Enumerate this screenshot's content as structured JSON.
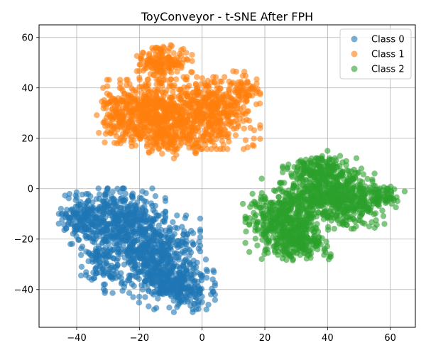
{
  "chart_data": {
    "type": "scatter",
    "title": "ToyConveyor - t-SNE After FPH",
    "xlabel": "",
    "ylabel": "",
    "xlim": [
      -52,
      68
    ],
    "ylim": [
      -55,
      65
    ],
    "xticks": [
      -40,
      -20,
      0,
      20,
      40,
      60
    ],
    "yticks": [
      -40,
      -20,
      0,
      20,
      40,
      60
    ],
    "xtick_labels": [
      "−40",
      "−20",
      "0",
      "20",
      "40",
      "60"
    ],
    "ytick_labels": [
      "−40",
      "−20",
      "0",
      "20",
      "40",
      "60"
    ],
    "grid": true,
    "legend_position": "top-right",
    "series": [
      {
        "name": "Class 0",
        "color": "#1f77b4",
        "clusters": [
          {
            "cx": -26,
            "cy": -12,
            "sx": 6.5,
            "sy": 5.5,
            "n": 380
          },
          {
            "cx": -16,
            "cy": -26,
            "sx": 7,
            "sy": 7,
            "n": 480
          },
          {
            "cx": -8,
            "cy": -38,
            "sx": 5.5,
            "sy": 4.5,
            "n": 300
          },
          {
            "cx": -38,
            "cy": -12,
            "sx": 3.5,
            "sy": 4.5,
            "n": 160
          },
          {
            "cx": -32,
            "cy": -28,
            "sx": 3,
            "sy": 5,
            "n": 110
          }
        ],
        "outliers": [
          [
            -27,
            0
          ],
          [
            -45,
            -8
          ],
          [
            -26,
            -4
          ],
          [
            -40,
            -15
          ],
          [
            -42,
            -22
          ],
          [
            -31,
            -38
          ],
          [
            -22,
            -43
          ],
          [
            -3,
            -49
          ],
          [
            -8,
            -47
          ],
          [
            -9,
            -49
          ],
          [
            2,
            -46
          ],
          [
            0,
            -45
          ],
          [
            -7,
            -34
          ]
        ]
      },
      {
        "name": "Class 1",
        "color": "#ff7f0e",
        "clusters": [
          {
            "cx": -16,
            "cy": 30,
            "sx": 6.5,
            "sy": 6,
            "n": 480
          },
          {
            "cx": 2,
            "cy": 30,
            "sx": 7.5,
            "sy": 6.5,
            "n": 520
          },
          {
            "cx": -12,
            "cy": 50,
            "sx": 4,
            "sy": 3,
            "n": 160
          },
          {
            "cx": -27,
            "cy": 29,
            "sx": 3,
            "sy": 5,
            "n": 110
          },
          {
            "cx": 13,
            "cy": 40,
            "sx": 2,
            "sy": 3,
            "n": 50
          },
          {
            "cx": -8,
            "cy": 20,
            "sx": 6,
            "sy": 3,
            "n": 110
          }
        ],
        "outliers": [
          [
            -10,
            57
          ],
          [
            -19,
            54
          ],
          [
            -26,
            20
          ],
          [
            -26,
            18
          ],
          [
            -9,
            12
          ],
          [
            -16,
            15
          ],
          [
            -2,
            14
          ],
          [
            4,
            17
          ],
          [
            15,
            27
          ],
          [
            -20,
            44
          ]
        ]
      },
      {
        "name": "Class 2",
        "color": "#2ca02c",
        "clusters": [
          {
            "cx": 40,
            "cy": 0,
            "sx": 6.5,
            "sy": 5.5,
            "n": 380
          },
          {
            "cx": 27,
            "cy": -12,
            "sx": 6,
            "sy": 6.5,
            "n": 460
          },
          {
            "cx": 47,
            "cy": -6,
            "sx": 5.5,
            "sy": 4.5,
            "n": 220
          },
          {
            "cx": 30,
            "cy": -22,
            "sx": 5,
            "sy": 3,
            "n": 160
          },
          {
            "cx": 58,
            "cy": -3,
            "sx": 3,
            "sy": 2,
            "n": 70
          },
          {
            "cx": 36,
            "cy": 8,
            "sx": 4,
            "sy": 2.5,
            "n": 90
          }
        ],
        "outliers": [
          [
            13,
            -6
          ],
          [
            15,
            -14
          ],
          [
            14,
            -17
          ],
          [
            40,
            15
          ],
          [
            44,
            13
          ],
          [
            41,
            -27
          ],
          [
            29,
            -28
          ],
          [
            51,
            -10
          ],
          [
            53,
            -9
          ],
          [
            61,
            -4
          ],
          [
            56,
            -5
          ],
          [
            55,
            6
          ],
          [
            19,
            4
          ]
        ]
      }
    ]
  }
}
